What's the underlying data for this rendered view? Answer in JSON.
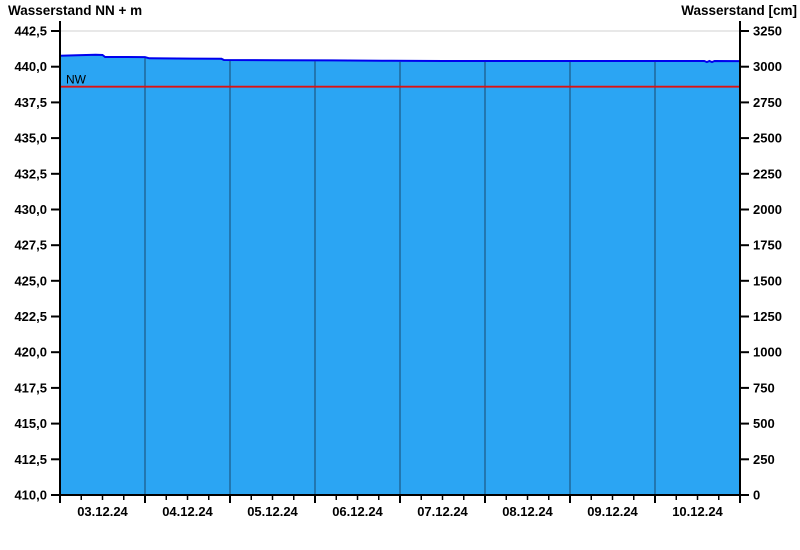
{
  "titles": {
    "left": "Wasserstand NN + m",
    "right": "Wasserstand [cm]"
  },
  "chart_data": {
    "type": "area",
    "title_left": "Wasserstand NN + m",
    "title_right": "Wasserstand [cm]",
    "x_axis": {
      "days": 8,
      "labels": [
        "03.12.24",
        "04.12.24",
        "05.12.24",
        "06.12.24",
        "07.12.24",
        "08.12.24",
        "09.12.24",
        "10.12.24"
      ],
      "minor_tick_hours": 6
    },
    "y_left": {
      "title": "Wasserstand NN + m",
      "unit": "NN + m",
      "min": 410.0,
      "max": 442.5,
      "step": 2.5,
      "values": [
        442.5,
        440.0,
        437.5,
        435.0,
        432.5,
        430.0,
        427.5,
        425.0,
        422.5,
        420.0,
        417.5,
        415.0,
        412.5,
        410.0
      ],
      "labels": [
        "442,5",
        "440,0",
        "437,5",
        "435,0",
        "432,5",
        "430,0",
        "427,5",
        "425,0",
        "422,5",
        "420,0",
        "417,5",
        "415,0",
        "412,5",
        "410,0"
      ]
    },
    "y_right": {
      "title": "Wasserstand [cm]",
      "unit": "cm",
      "min": 0,
      "max": 3250,
      "step": 250,
      "values": [
        3250,
        3000,
        2750,
        2500,
        2250,
        2000,
        1750,
        1500,
        1250,
        1000,
        750,
        500,
        250,
        0
      ],
      "labels": [
        "3250",
        "3000",
        "2750",
        "2500",
        "2250",
        "2000",
        "1750",
        "1500",
        "1250",
        "1000",
        "750",
        "500",
        "250",
        "0"
      ]
    },
    "series": [
      {
        "name": "Wasserstand",
        "unit": "cm",
        "points": [
          [
            0.0,
            3077
          ],
          [
            0.2,
            3080
          ],
          [
            0.42,
            3083
          ],
          [
            0.5,
            3082
          ],
          [
            0.53,
            3068
          ],
          [
            1.0,
            3067
          ],
          [
            1.05,
            3059
          ],
          [
            1.55,
            3057
          ],
          [
            1.9,
            3055
          ],
          [
            1.93,
            3047
          ],
          [
            2.6,
            3045
          ],
          [
            3.2,
            3044
          ],
          [
            3.9,
            3041
          ],
          [
            4.5,
            3040
          ],
          [
            7.58,
            3040
          ],
          [
            7.61,
            3033
          ],
          [
            7.64,
            3040
          ],
          [
            7.67,
            3033
          ],
          [
            7.7,
            3040
          ],
          [
            8.0,
            3039
          ]
        ]
      }
    ],
    "reference_line": {
      "label": "NW",
      "value_cm": 2860
    },
    "colors": {
      "fill": "#2BA5F3",
      "line": "#0000EE",
      "grid": "#1D5E8C",
      "reference": "#DD1111",
      "axis": "#000000",
      "frame_top": "#D9D9D9"
    }
  }
}
